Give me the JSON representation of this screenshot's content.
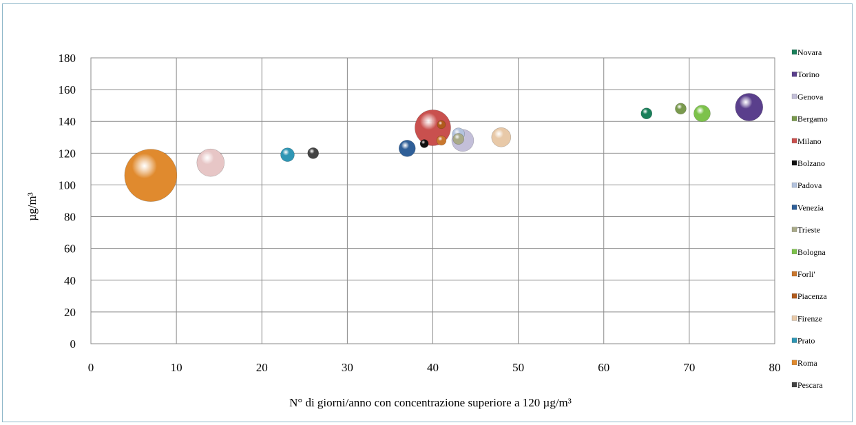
{
  "chart_data": {
    "type": "scatter",
    "ylabel": "µg/m³",
    "xlabel": "N° di giorni/anno con concentrazione superiore a 120 µg/m³",
    "xlim": [
      0,
      80
    ],
    "ylim": [
      0,
      180
    ],
    "xticks": [
      "0",
      "10",
      "20",
      "30",
      "40",
      "50",
      "60",
      "70",
      "80"
    ],
    "yticks": [
      "0",
      "20",
      "40",
      "60",
      "80",
      "100",
      "120",
      "140",
      "160",
      "180"
    ],
    "grid": true,
    "legend_position": "right",
    "series": [
      {
        "name": "Novara",
        "x": 65,
        "y": 145,
        "size": 8,
        "color": "#1a7f5a"
      },
      {
        "name": "Torino",
        "x": 77,
        "y": 149,
        "size": 20,
        "color": "#5a3f8c"
      },
      {
        "name": "Genova",
        "x": 43.5,
        "y": 128,
        "size": 16,
        "color": "#c3bfd9"
      },
      {
        "name": "Bergamo",
        "x": 69,
        "y": 148,
        "size": 8,
        "color": "#7a9a4e"
      },
      {
        "name": "Milano",
        "x": 40,
        "y": 136,
        "size": 26,
        "color": "#c9504e"
      },
      {
        "name": "Bolzano",
        "x": 39,
        "y": 126,
        "size": 6,
        "color": "#111111"
      },
      {
        "name": "Padova",
        "x": 43,
        "y": 132,
        "size": 9,
        "color": "#b3c3de"
      },
      {
        "name": "Venezia",
        "x": 37,
        "y": 123,
        "size": 12,
        "color": "#2f5f98"
      },
      {
        "name": "Trieste",
        "x": 43,
        "y": 129,
        "size": 8,
        "color": "#a9aa88"
      },
      {
        "name": "Bologna",
        "x": 71.5,
        "y": 145,
        "size": 12,
        "color": "#7dc24b"
      },
      {
        "name": "Forli'",
        "x": 41,
        "y": 128,
        "size": 7,
        "color": "#c9772e"
      },
      {
        "name": "Piacenza",
        "x": 41,
        "y": 138,
        "size": 6,
        "color": "#b05a1c"
      },
      {
        "name": "Firenze",
        "x": 48,
        "y": 130,
        "size": 14,
        "color": "#e8c9a8"
      },
      {
        "name": "Prato",
        "x": 23,
        "y": 119,
        "size": 10,
        "color": "#2f96b4"
      },
      {
        "name": "Roma",
        "x": 7,
        "y": 106,
        "size": 38,
        "color": "#e08a2e"
      },
      {
        "name": "Pescara",
        "x": 26,
        "y": 120,
        "size": 8,
        "color": "#444444"
      }
    ]
  },
  "extra_bubbles": [
    {
      "series": "Firenze",
      "x": 14,
      "y": 114,
      "size": 20,
      "color": "#e7c6c6"
    }
  ]
}
